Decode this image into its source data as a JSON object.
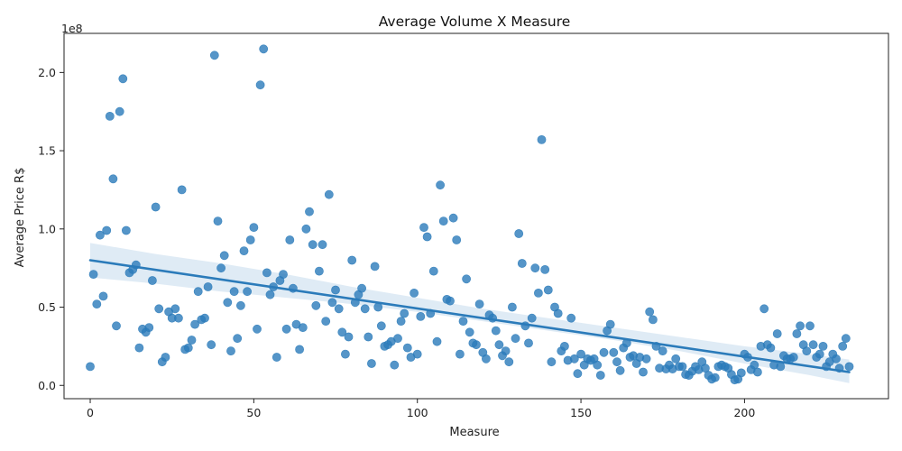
{
  "chart_data": {
    "type": "scatter",
    "title": "Average Volume X Measure",
    "xlabel": "Measure",
    "ylabel": "Average Price R$",
    "y_offset_label": "1e8",
    "xlim": [
      -8,
      244
    ],
    "ylim": [
      -8500000,
      225000000
    ],
    "x_ticks": [
      0,
      50,
      100,
      150,
      200
    ],
    "x_tick_labels": [
      "0",
      "50",
      "100",
      "150",
      "200"
    ],
    "y_ticks": [
      0,
      50000000,
      100000000,
      150000000,
      200000000
    ],
    "y_tick_labels": [
      "0.0",
      "0.5",
      "1.0",
      "1.5",
      "2.0"
    ],
    "grid": false,
    "colors": {
      "points": "#2b7bba",
      "line": "#2b7bba",
      "band": "#2b7bba"
    },
    "regression": {
      "x": [
        0,
        232
      ],
      "y": [
        80000000,
        8500000
      ]
    },
    "confidence_band": {
      "x": [
        0,
        20,
        40,
        60,
        80,
        100,
        120,
        140,
        160,
        180,
        200,
        220,
        232
      ],
      "lower": [
        69000000,
        65000000,
        60000000,
        56000000,
        52000000,
        47000000,
        41000000,
        35000000,
        29000000,
        22000000,
        14000000,
        6500000,
        1500000
      ],
      "upper": [
        91000000,
        84000000,
        78000000,
        71000000,
        63000000,
        56000000,
        49000000,
        43000000,
        37000000,
        31000000,
        25000000,
        20000000,
        16500000
      ]
    },
    "points": {
      "x": [
        0,
        1,
        2,
        3,
        4,
        5,
        6,
        7,
        8,
        9,
        10,
        11,
        12,
        13,
        14,
        15,
        16,
        17,
        18,
        19,
        20,
        21,
        22,
        23,
        24,
        25,
        26,
        27,
        28,
        29,
        30,
        31,
        32,
        33,
        34,
        35,
        36,
        37,
        38,
        39,
        40,
        41,
        42,
        43,
        44,
        45,
        46,
        47,
        48,
        49,
        50,
        51,
        52,
        53,
        54,
        55,
        56,
        57,
        58,
        59,
        60,
        61,
        62,
        63,
        64,
        65,
        66,
        67,
        68,
        69,
        70,
        71,
        72,
        73,
        74,
        75,
        76,
        77,
        78,
        79,
        80,
        81,
        82,
        83,
        84,
        85,
        86,
        87,
        88,
        89,
        90,
        91,
        92,
        93,
        94,
        95,
        96,
        97,
        98,
        99,
        100,
        101,
        102,
        103,
        104,
        105,
        106,
        107,
        108,
        109,
        110,
        111,
        112,
        113,
        114,
        115,
        116,
        117,
        118,
        119,
        120,
        121,
        122,
        123,
        124,
        125,
        126,
        127,
        128,
        129,
        130,
        131,
        132,
        133,
        134,
        135,
        136,
        137,
        138,
        139,
        140,
        141,
        142,
        143,
        144,
        145,
        146,
        147,
        148,
        149,
        150,
        151,
        152,
        153,
        154,
        155,
        156,
        157,
        158,
        159,
        160,
        161,
        162,
        163,
        164,
        165,
        166,
        167,
        168,
        169,
        170,
        171,
        172,
        173,
        174,
        175,
        176,
        177,
        178,
        179,
        180,
        181,
        182,
        183,
        184,
        185,
        186,
        187,
        188,
        189,
        190,
        191,
        192,
        193,
        194,
        195,
        196,
        197,
        198,
        199,
        200,
        201,
        202,
        203,
        204,
        205,
        206,
        207,
        208,
        209,
        210,
        211,
        212,
        213,
        214,
        215,
        216,
        217,
        218,
        219,
        220,
        221,
        222,
        223,
        224,
        225,
        226,
        227,
        228,
        229,
        230,
        231,
        232
      ],
      "y": [
        12000000,
        71000000,
        52000000,
        96000000,
        57000000,
        99000000,
        172000000,
        132000000,
        38000000,
        175000000,
        196000000,
        99000000,
        72000000,
        74000000,
        77000000,
        24000000,
        36000000,
        34000000,
        37000000,
        67000000,
        114000000,
        49000000,
        15000000,
        18000000,
        47000000,
        43000000,
        49000000,
        43000000,
        125000000,
        23000000,
        24000000,
        29000000,
        39000000,
        60000000,
        42000000,
        43000000,
        63000000,
        26000000,
        211000000,
        105000000,
        75000000,
        83000000,
        53000000,
        22000000,
        60000000,
        30000000,
        51000000,
        86000000,
        60000000,
        93000000,
        101000000,
        36000000,
        192000000,
        215000000,
        72000000,
        58000000,
        63000000,
        18000000,
        67000000,
        71000000,
        36000000,
        93000000,
        62000000,
        39000000,
        23000000,
        37000000,
        100000000,
        111000000,
        90000000,
        51000000,
        73000000,
        90000000,
        41000000,
        122000000,
        53000000,
        61000000,
        49000000,
        34000000,
        20000000,
        31000000,
        80000000,
        53000000,
        58000000,
        62000000,
        49000000,
        31000000,
        14000000,
        76000000,
        50000000,
        38000000,
        25000000,
        26000000,
        28000000,
        13000000,
        30000000,
        41000000,
        46000000,
        24000000,
        18000000,
        59000000,
        20000000,
        44000000,
        101000000,
        95000000,
        46000000,
        73000000,
        28000000,
        128000000,
        105000000,
        55000000,
        54000000,
        107000000,
        93000000,
        20000000,
        41000000,
        68000000,
        34000000,
        27000000,
        26000000,
        52000000,
        21000000,
        17000000,
        45000000,
        43000000,
        35000000,
        26000000,
        19000000,
        22000000,
        15000000,
        50000000,
        30000000,
        97000000,
        78000000,
        38000000,
        27000000,
        43000000,
        75000000,
        59000000,
        157000000,
        74000000,
        61000000,
        15000000,
        50000000,
        46000000,
        22000000,
        25000000,
        16000000,
        43000000,
        17000000,
        7500000,
        20000000,
        13000000,
        17000000,
        16000000,
        17000000,
        13000000,
        6500000,
        21000000,
        35000000,
        39000000,
        21000000,
        15000000,
        9500000,
        24000000,
        27000000,
        18000000,
        19000000,
        14000000,
        18000000,
        8500000,
        17000000,
        47000000,
        42000000,
        25000000,
        11000000,
        22000000,
        10500000,
        13000000,
        10500000,
        17000000,
        12000000,
        12000000,
        7000000,
        6500000,
        9000000,
        12000000,
        10000000,
        15000000,
        11000000,
        6500000,
        4000000,
        5000000,
        12000000,
        13000000,
        12000000,
        11000000,
        7000000,
        3500000,
        4000000,
        8000000,
        20000000,
        18000000,
        10000000,
        13000000,
        8500000,
        25000000,
        49000000,
        26000000,
        24000000,
        13000000,
        33000000,
        12000000,
        19000000,
        17000000,
        17000000,
        18000000,
        33000000,
        38000000,
        26000000,
        22000000,
        38000000,
        26000000,
        18000000,
        20000000,
        25000000,
        12000000,
        15000000,
        20000000,
        17000000,
        11000000,
        25000000,
        30000000,
        12000000
      ]
    }
  }
}
